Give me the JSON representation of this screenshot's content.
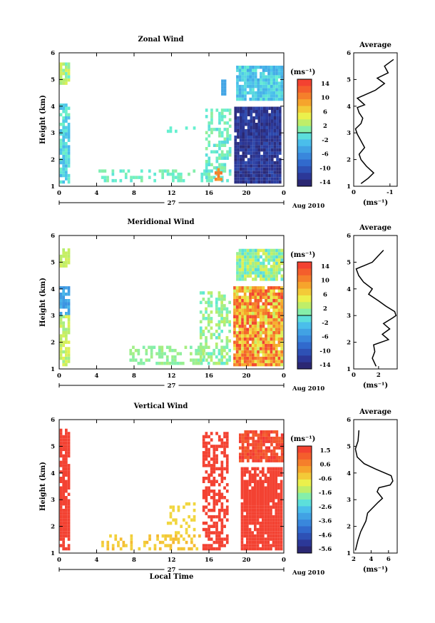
{
  "chart_data": [
    {
      "type": "heatmap",
      "title": "Zonal Wind",
      "ylabel": "Height (km)",
      "ylim": [
        1,
        6
      ],
      "yticks": [
        "1",
        "2",
        "3",
        "4",
        "5",
        "6"
      ],
      "xticks": [
        "0",
        "4",
        "8",
        "12",
        "16",
        "20",
        "0"
      ],
      "xrange_hours": [
        0,
        24
      ],
      "date_day": "27",
      "date_month": "Aug 2010",
      "colorbar": {
        "unit": "(ms⁻¹)",
        "range": [
          -15,
          15
        ],
        "ticks": [
          "14",
          "10",
          "6",
          "2",
          "-2",
          "-6",
          "-10",
          "-14"
        ]
      },
      "profile": {
        "title": "Average",
        "xlim": [
          0,
          -1.2
        ],
        "xticks": [
          "0",
          "-1"
        ],
        "xlabel": "(ms⁻¹)",
        "x": [
          -0.2,
          -0.4,
          -0.55,
          -0.35,
          -0.2,
          -0.15,
          -0.3,
          -0.2,
          -0.1,
          -0.05,
          -0.2,
          -0.25,
          -0.15,
          -0.1,
          -0.3,
          -0.1,
          -0.6,
          -0.85,
          -0.65,
          -0.95,
          -0.85,
          -1.1
        ],
        "y": [
          1.1,
          1.3,
          1.5,
          1.75,
          2.0,
          2.2,
          2.45,
          2.7,
          2.95,
          3.15,
          3.35,
          3.55,
          3.75,
          3.95,
          4.05,
          4.3,
          4.6,
          4.85,
          5.05,
          5.25,
          5.5,
          5.75
        ]
      }
    },
    {
      "type": "heatmap",
      "title": "Meridional Wind",
      "ylabel": "Height (km)",
      "ylim": [
        1,
        6
      ],
      "yticks": [
        "1",
        "2",
        "3",
        "4",
        "5",
        "6"
      ],
      "xticks": [
        "0",
        "4",
        "8",
        "12",
        "16",
        "20",
        "0"
      ],
      "xrange_hours": [
        0,
        24
      ],
      "date_day": "27",
      "date_month": "Aug 2010",
      "colorbar": {
        "unit": "(ms⁻¹)",
        "range": [
          -15,
          15
        ],
        "ticks": [
          "14",
          "10",
          "6",
          "2",
          "-2",
          "-6",
          "-10",
          "-14"
        ]
      },
      "profile": {
        "title": "Average",
        "xlim": [
          0,
          3.5
        ],
        "xticks": [
          "0",
          "2"
        ],
        "xlabel": "(ms⁻¹)",
        "x": [
          1.8,
          1.5,
          1.7,
          1.6,
          2.8,
          2.3,
          2.9,
          2.4,
          3.1,
          3.4,
          3.3,
          2.6,
          2.0,
          1.2,
          1.5,
          0.8,
          0.4,
          0.2,
          1.5,
          1.9,
          2.4
        ],
        "y": [
          1.1,
          1.4,
          1.65,
          1.9,
          2.1,
          2.3,
          2.5,
          2.7,
          2.9,
          3.0,
          3.15,
          3.35,
          3.55,
          3.8,
          4.0,
          4.25,
          4.5,
          4.75,
          5.0,
          5.2,
          5.45
        ]
      }
    },
    {
      "type": "heatmap",
      "title": "Vertical Wind",
      "ylabel": "Height (km)",
      "ylim": [
        1,
        6
      ],
      "yticks": [
        "1",
        "2",
        "3",
        "4",
        "5",
        "6"
      ],
      "xticks": [
        "0",
        "4",
        "8",
        "12",
        "16",
        "20",
        "0"
      ],
      "xrange_hours": [
        0,
        24
      ],
      "date_day": "27",
      "date_month": "Aug 2010",
      "xlabel": "Local Time",
      "colorbar": {
        "unit": "(ms⁻¹)",
        "range": [
          -5.8,
          1.9
        ],
        "ticks": [
          "1.5",
          "0.6",
          "-0.6",
          "-1.6",
          "-2.6",
          "-3.6",
          "-4.6",
          "-5.6"
        ]
      },
      "profile": {
        "title": "Average",
        "xlim": [
          2,
          7
        ],
        "xticks": [
          "2",
          "4",
          "6"
        ],
        "xlabel": "(ms⁻¹)",
        "x": [
          2.2,
          2.5,
          2.8,
          3.4,
          3.6,
          4.8,
          5.3,
          4.7,
          4.9,
          6.2,
          6.5,
          6.3,
          4.5,
          3.2,
          2.4,
          2.2,
          2.5,
          2.6
        ],
        "y": [
          1.1,
          1.5,
          1.8,
          2.2,
          2.5,
          2.9,
          3.05,
          3.3,
          3.45,
          3.55,
          3.7,
          3.9,
          4.15,
          4.35,
          4.6,
          4.9,
          5.2,
          5.6
        ]
      }
    }
  ]
}
